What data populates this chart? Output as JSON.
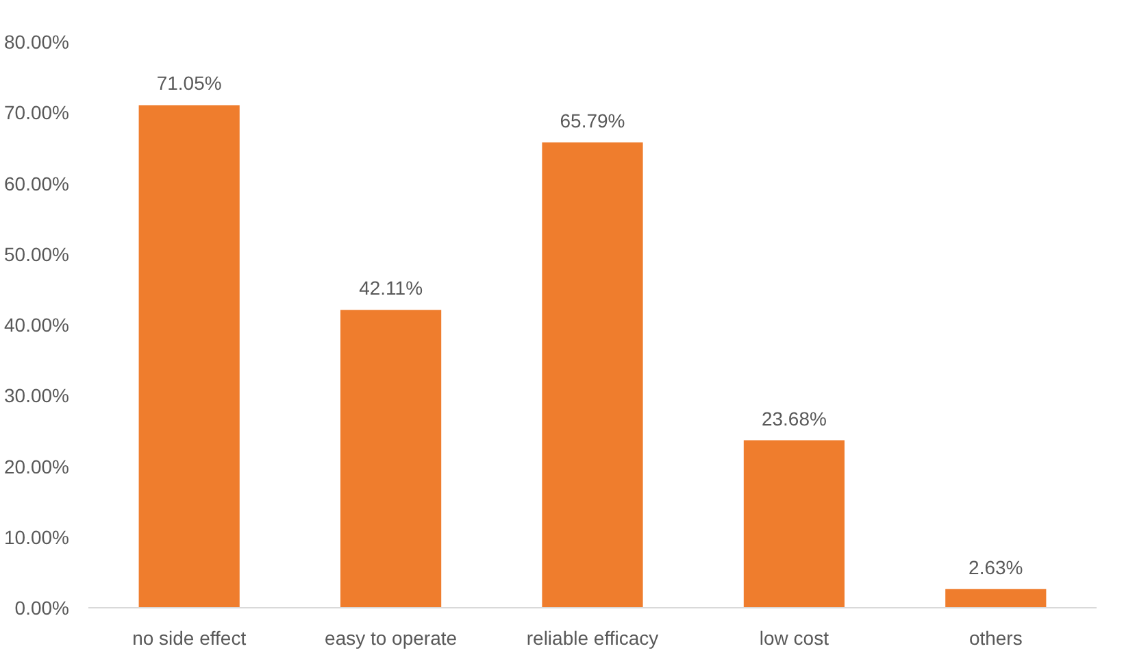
{
  "chart_data": {
    "type": "bar",
    "categories": [
      "no side effect",
      "easy to operate",
      "reliable efficacy",
      "low cost",
      "others"
    ],
    "values": [
      71.05,
      42.11,
      65.79,
      23.68,
      2.63
    ],
    "value_labels": [
      "71.05%",
      "42.11%",
      "65.79%",
      "23.68%",
      "2.63%"
    ],
    "color": "#ef7d2d",
    "ylim": [
      0,
      80
    ],
    "yticks": [
      {
        "value": 0,
        "label": "0.00%"
      },
      {
        "value": 10,
        "label": "10.00%"
      },
      {
        "value": 20,
        "label": "20.00%"
      },
      {
        "value": 30,
        "label": "30.00%"
      },
      {
        "value": 40,
        "label": "40.00%"
      },
      {
        "value": 50,
        "label": "50.00%"
      },
      {
        "value": 60,
        "label": "60.00%"
      },
      {
        "value": 70,
        "label": "70.00%"
      },
      {
        "value": 80,
        "label": "80.00%"
      }
    ],
    "grid": false
  }
}
